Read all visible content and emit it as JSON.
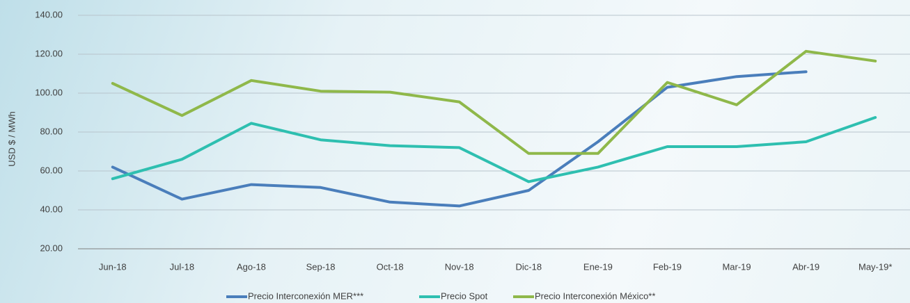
{
  "chart_data": {
    "type": "line",
    "y_label": "USD $ / MWh",
    "categories": [
      "Jun-18",
      "Jul-18",
      "Ago-18",
      "Sep-18",
      "Oct-18",
      "Nov-18",
      "Dic-18",
      "Ene-19",
      "Feb-19",
      "Mar-19",
      "Abr-19",
      "May-19*"
    ],
    "series": [
      {
        "name": "Precio Interconexión MER***",
        "color": "#4a7ebb",
        "values": [
          62,
          45.5,
          53,
          51.5,
          44,
          42,
          50,
          75,
          103,
          108.5,
          111,
          null
        ]
      },
      {
        "name": "Precio Spot",
        "color": "#2ebfb0",
        "values": [
          56,
          66,
          84.5,
          76,
          73,
          72,
          54.5,
          62,
          72.5,
          72.5,
          75,
          87.5
        ]
      },
      {
        "name": "Precio Interconexión México**",
        "color": "#8fb84a",
        "values": [
          105,
          88.5,
          106.5,
          101,
          100.5,
          95.5,
          69,
          69,
          105.5,
          94,
          121.5,
          116.5
        ]
      }
    ],
    "ylim": [
      20,
      140
    ],
    "yticks": [
      {
        "value": 20,
        "label": "20.00"
      },
      {
        "value": 40,
        "label": "40.00"
      },
      {
        "value": 60,
        "label": "60.00"
      },
      {
        "value": 80,
        "label": "80.00"
      },
      {
        "value": 100,
        "label": "100.00"
      },
      {
        "value": 120,
        "label": "120.00"
      },
      {
        "value": 140,
        "label": "140.00"
      }
    ],
    "grid": true,
    "legend": "bottom"
  }
}
